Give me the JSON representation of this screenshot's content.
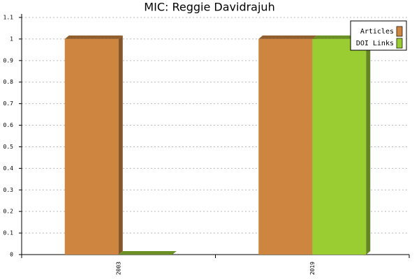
{
  "chart_data": {
    "type": "bar",
    "title": "MIC: Reggie Davidrajuh",
    "categories": [
      "2003",
      "2019"
    ],
    "series": [
      {
        "name": "Articles",
        "color": "#cd853f",
        "values": [
          1,
          1
        ]
      },
      {
        "name": "DOI Links",
        "color": "#9acd32",
        "values": [
          0,
          1
        ]
      }
    ],
    "ylim": [
      0,
      1.1
    ],
    "yticks": [
      0,
      0.1,
      0.2,
      0.3,
      0.4,
      0.5,
      0.6,
      0.7,
      0.8,
      0.9,
      1,
      1.1
    ],
    "grid": true,
    "legend": "top-right"
  }
}
